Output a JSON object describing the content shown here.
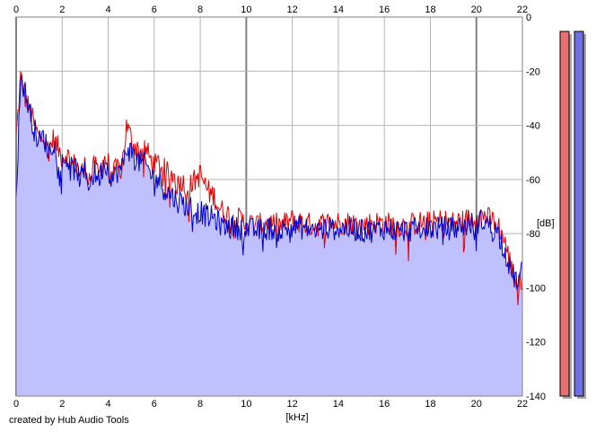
{
  "chart_data": {
    "type": "area",
    "xlabel": "[kHz]",
    "ylabel": "[dB]",
    "xlim": [
      0,
      22
    ],
    "ylim": [
      -140,
      0
    ],
    "xticks": [
      0,
      2,
      4,
      6,
      8,
      10,
      12,
      14,
      16,
      18,
      20,
      22
    ],
    "yticks": [
      0,
      -20,
      -40,
      -60,
      -80,
      -100,
      -120,
      -140
    ],
    "grid": true,
    "series": [
      {
        "color": "#e00000",
        "x": [
          0,
          0.2,
          0.4,
          0.6,
          0.8,
          1.0,
          1.2,
          1.4,
          1.6,
          1.8,
          2.0,
          2.2,
          2.4,
          2.6,
          2.8,
          3.0,
          3.2,
          3.4,
          3.6,
          3.8,
          4.0,
          4.2,
          4.4,
          4.6,
          4.8,
          5.0,
          5.2,
          5.4,
          5.6,
          5.8,
          6.0,
          6.2,
          6.4,
          6.6,
          6.8,
          7.0,
          7.2,
          7.4,
          7.6,
          7.8,
          8.0,
          8.2,
          8.4,
          8.6,
          8.8,
          9.0,
          9.5,
          10.0,
          10.5,
          11.0,
          11.5,
          12.0,
          12.5,
          13.0,
          13.5,
          14.0,
          14.5,
          15.0,
          15.5,
          16.0,
          16.5,
          17.0,
          17.5,
          18.0,
          18.5,
          19.0,
          19.5,
          20.0,
          20.3,
          20.6,
          20.9,
          21.2,
          21.5,
          21.8,
          22.0
        ],
        "y": [
          -45,
          -22,
          -30,
          -35,
          -40,
          -45,
          -42,
          -50,
          -45,
          -48,
          -52,
          -50,
          -55,
          -54,
          -58,
          -55,
          -60,
          -55,
          -58,
          -52,
          -54,
          -58,
          -56,
          -55,
          -40,
          -45,
          -48,
          -50,
          -48,
          -52,
          -55,
          -54,
          -56,
          -58,
          -58,
          -62,
          -60,
          -64,
          -62,
          -60,
          -58,
          -62,
          -65,
          -66,
          -70,
          -72,
          -74,
          -76,
          -77,
          -76,
          -77,
          -75,
          -76,
          -77,
          -76,
          -76,
          -76,
          -77,
          -76,
          -76,
          -77,
          -77,
          -76,
          -76,
          -75,
          -76,
          -75,
          -74,
          -73,
          -75,
          -76,
          -82,
          -92,
          -100,
          -96
        ]
      },
      {
        "color": "#0000c8",
        "x": [
          0,
          0.2,
          0.4,
          0.6,
          0.8,
          1.0,
          1.2,
          1.4,
          1.6,
          1.8,
          2.0,
          2.2,
          2.4,
          2.6,
          2.8,
          3.0,
          3.2,
          3.4,
          3.6,
          3.8,
          4.0,
          4.2,
          4.4,
          4.6,
          4.8,
          5.0,
          5.2,
          5.4,
          5.6,
          5.8,
          6.0,
          6.2,
          6.4,
          6.6,
          6.8,
          7.0,
          7.2,
          7.4,
          7.6,
          7.8,
          8.0,
          8.2,
          8.4,
          8.6,
          8.8,
          9.0,
          9.5,
          10.0,
          10.5,
          11.0,
          11.5,
          12.0,
          12.5,
          13.0,
          13.5,
          14.0,
          14.5,
          15.0,
          15.5,
          16.0,
          16.5,
          17.0,
          17.5,
          18.0,
          18.5,
          19.0,
          19.5,
          20.0,
          20.3,
          20.6,
          20.9,
          21.2,
          21.5,
          21.8,
          22.0
        ],
        "y": [
          -66,
          -22,
          -28,
          -35,
          -42,
          -46,
          -44,
          -50,
          -46,
          -50,
          -54,
          -52,
          -56,
          -56,
          -60,
          -57,
          -62,
          -57,
          -60,
          -54,
          -56,
          -60,
          -57,
          -56,
          -48,
          -50,
          -52,
          -54,
          -54,
          -57,
          -60,
          -60,
          -63,
          -65,
          -66,
          -68,
          -68,
          -70,
          -70,
          -72,
          -72,
          -73,
          -74,
          -74,
          -76,
          -77,
          -78,
          -78,
          -79,
          -78,
          -79,
          -77,
          -78,
          -79,
          -78,
          -78,
          -78,
          -79,
          -79,
          -78,
          -79,
          -79,
          -78,
          -78,
          -78,
          -78,
          -77,
          -76,
          -75,
          -77,
          -79,
          -85,
          -94,
          -98,
          -94
        ]
      }
    ],
    "meters": [
      {
        "color": "#e87070",
        "level": -140
      },
      {
        "color": "#7070e0",
        "level": -140
      }
    ]
  },
  "footer": {
    "credit": "created by Hub Audio Tools"
  }
}
